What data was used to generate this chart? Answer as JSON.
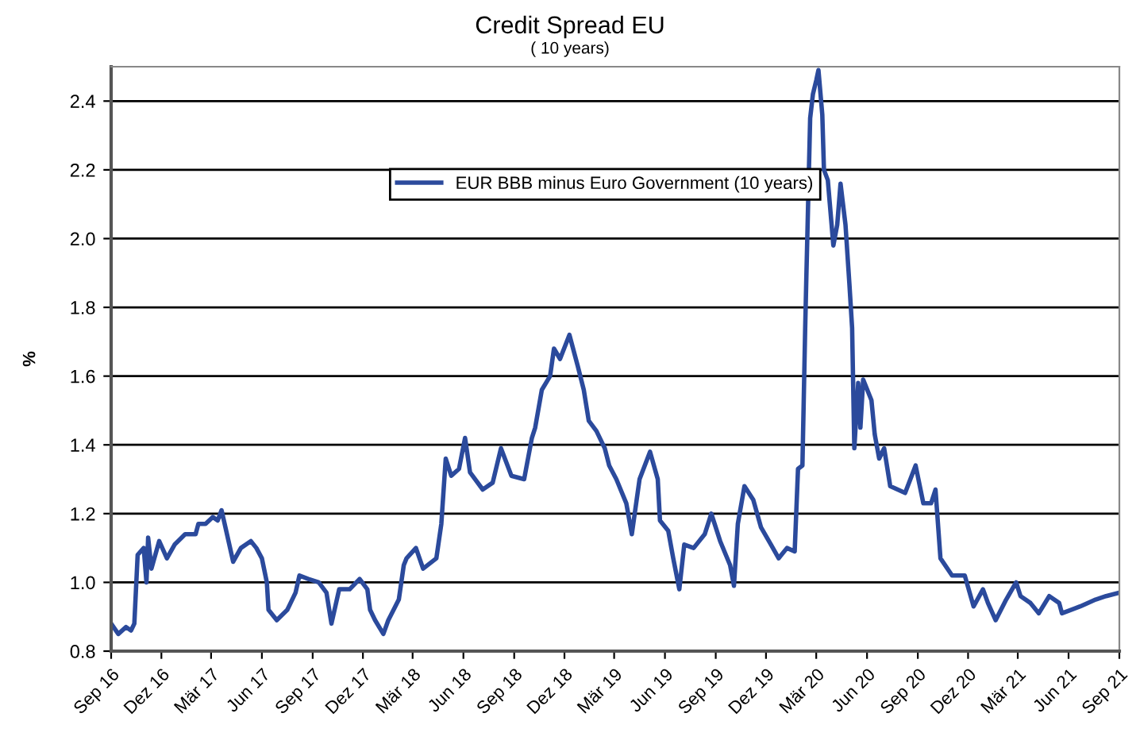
{
  "chart_data": {
    "type": "line",
    "title": "Credit Spread EU",
    "subtitle": "( 10 years)",
    "ylabel": "%",
    "x": [
      "2016-09-01",
      "2016-09-14",
      "2016-09-28",
      "2016-10-07",
      "2016-10-13",
      "2016-10-19",
      "2016-10-30",
      "2016-11-04",
      "2016-11-07",
      "2016-11-13",
      "2016-11-27",
      "2016-12-11",
      "2016-12-25",
      "2017-01-13",
      "2017-02-01",
      "2017-02-06",
      "2017-02-19",
      "2017-03-04",
      "2017-03-13",
      "2017-03-20",
      "2017-03-27",
      "2017-04-10",
      "2017-04-24",
      "2017-05-12",
      "2017-05-22",
      "2017-06-01",
      "2017-06-10",
      "2017-06-13",
      "2017-06-28",
      "2017-07-17",
      "2017-08-01",
      "2017-08-08",
      "2017-08-24",
      "2017-09-12",
      "2017-09-26",
      "2017-10-05",
      "2017-10-19",
      "2017-11-07",
      "2017-11-25",
      "2017-12-09",
      "2017-12-14",
      "2017-12-23",
      "2018-01-07",
      "2018-01-16",
      "2018-02-04",
      "2018-02-13",
      "2018-02-18",
      "2018-03-07",
      "2018-03-20",
      "2018-04-13",
      "2018-04-22",
      "2018-04-30",
      "2018-05-10",
      "2018-05-24",
      "2018-06-04",
      "2018-06-13",
      "2018-07-06",
      "2018-07-24",
      "2018-08-08",
      "2018-08-27",
      "2018-09-19",
      "2018-10-03",
      "2018-10-09",
      "2018-10-21",
      "2018-11-05",
      "2018-11-12",
      "2018-11-23",
      "2018-12-10",
      "2018-12-25",
      "2019-01-05",
      "2019-01-14",
      "2019-01-28",
      "2019-02-12",
      "2019-02-20",
      "2019-03-05",
      "2019-03-23",
      "2019-04-02",
      "2019-04-16",
      "2019-05-05",
      "2019-05-19",
      "2019-05-23",
      "2019-06-07",
      "2019-06-16",
      "2019-06-27",
      "2019-07-06",
      "2019-07-23",
      "2019-08-12",
      "2019-08-24",
      "2019-09-09",
      "2019-09-27",
      "2019-10-04",
      "2019-10-11",
      "2019-10-23",
      "2019-11-08",
      "2019-11-22",
      "2019-12-10",
      "2019-12-24",
      "2020-01-08",
      "2020-01-22",
      "2020-01-28",
      "2020-02-05",
      "2020-02-10",
      "2020-02-12",
      "2020-02-19",
      "2020-02-24",
      "2020-03-01",
      "2020-03-05",
      "2020-03-12",
      "2020-03-15",
      "2020-03-22",
      "2020-04-01",
      "2020-04-08",
      "2020-04-14",
      "2020-04-23",
      "2020-04-30",
      "2020-05-05",
      "2020-05-09",
      "2020-05-16",
      "2020-05-20",
      "2020-05-25",
      "2020-06-09",
      "2020-06-15",
      "2020-06-23",
      "2020-07-02",
      "2020-07-13",
      "2020-08-09",
      "2020-08-28",
      "2020-09-11",
      "2020-09-25",
      "2020-10-03",
      "2020-10-12",
      "2020-11-02",
      "2020-11-25",
      "2020-12-11",
      "2020-12-28",
      "2021-01-06",
      "2021-01-20",
      "2021-02-08",
      "2021-02-26",
      "2021-03-06",
      "2021-03-24",
      "2021-04-08",
      "2021-04-27",
      "2021-05-15",
      "2021-05-20",
      "2021-06-22",
      "2021-07-20",
      "2021-08-08",
      "2021-09-01"
    ],
    "series": [
      {
        "name": "EUR BBB minus Euro Government (10 years)",
        "color": "#2b4a9c",
        "values": [
          0.88,
          0.85,
          0.87,
          0.86,
          0.88,
          1.08,
          1.1,
          1.0,
          1.13,
          1.04,
          1.12,
          1.07,
          1.11,
          1.14,
          1.14,
          1.17,
          1.17,
          1.19,
          1.18,
          1.21,
          1.16,
          1.06,
          1.1,
          1.12,
          1.1,
          1.07,
          1.0,
          0.92,
          0.89,
          0.92,
          0.97,
          1.02,
          1.01,
          1.0,
          0.97,
          0.88,
          0.98,
          0.98,
          1.01,
          0.98,
          0.92,
          0.89,
          0.85,
          0.89,
          0.95,
          1.05,
          1.07,
          1.1,
          1.04,
          1.07,
          1.17,
          1.36,
          1.31,
          1.33,
          1.42,
          1.32,
          1.27,
          1.29,
          1.39,
          1.31,
          1.3,
          1.42,
          1.45,
          1.56,
          1.6,
          1.68,
          1.65,
          1.72,
          1.63,
          1.56,
          1.47,
          1.44,
          1.39,
          1.34,
          1.3,
          1.23,
          1.14,
          1.3,
          1.38,
          1.3,
          1.18,
          1.15,
          1.07,
          0.98,
          1.11,
          1.1,
          1.14,
          1.2,
          1.12,
          1.05,
          0.99,
          1.17,
          1.28,
          1.24,
          1.16,
          1.11,
          1.07,
          1.1,
          1.09,
          1.33,
          1.34,
          1.74,
          1.88,
          2.35,
          2.42,
          2.46,
          2.49,
          2.36,
          2.2,
          2.17,
          1.98,
          2.04,
          2.16,
          2.04,
          1.87,
          1.74,
          1.39,
          1.58,
          1.45,
          1.59,
          1.53,
          1.43,
          1.36,
          1.39,
          1.28,
          1.26,
          1.34,
          1.23,
          1.23,
          1.27,
          1.07,
          1.02,
          1.02,
          0.93,
          0.98,
          0.94,
          0.89,
          0.95,
          1.0,
          0.96,
          0.94,
          0.91,
          0.96,
          0.94,
          0.91,
          0.93,
          0.95,
          0.96,
          0.97
        ]
      }
    ],
    "xlim": [
      "2016-09-01",
      "2021-09-01"
    ],
    "xticks": [
      {
        "value": "2016-09-01",
        "label": "Sep 16"
      },
      {
        "value": "2016-12-01",
        "label": "Dez 16"
      },
      {
        "value": "2017-03-01",
        "label": "Mär 17"
      },
      {
        "value": "2017-06-01",
        "label": "Jun 17"
      },
      {
        "value": "2017-09-01",
        "label": "Sep 17"
      },
      {
        "value": "2017-12-01",
        "label": "Dez 17"
      },
      {
        "value": "2018-03-01",
        "label": "Mär 18"
      },
      {
        "value": "2018-06-01",
        "label": "Jun 18"
      },
      {
        "value": "2018-09-01",
        "label": "Sep 18"
      },
      {
        "value": "2018-12-01",
        "label": "Dez 18"
      },
      {
        "value": "2019-03-01",
        "label": "Mär 19"
      },
      {
        "value": "2019-06-01",
        "label": "Jun 19"
      },
      {
        "value": "2019-09-01",
        "label": "Sep 19"
      },
      {
        "value": "2019-12-01",
        "label": "Dez 19"
      },
      {
        "value": "2020-03-01",
        "label": "Mär 20"
      },
      {
        "value": "2020-06-01",
        "label": "Jun 20"
      },
      {
        "value": "2020-09-01",
        "label": "Sep 20"
      },
      {
        "value": "2020-12-01",
        "label": "Dez 20"
      },
      {
        "value": "2021-03-01",
        "label": "Mär 21"
      },
      {
        "value": "2021-06-01",
        "label": "Jun 21"
      },
      {
        "value": "2021-09-01",
        "label": "Sep 21"
      }
    ],
    "ylim": [
      0.8,
      2.5
    ],
    "yticks": [
      {
        "value": 0.8,
        "label": "0.8"
      },
      {
        "value": 1.0,
        "label": "1.0"
      },
      {
        "value": 1.2,
        "label": "1.2"
      },
      {
        "value": 1.4,
        "label": "1.4"
      },
      {
        "value": 1.6,
        "label": "1.6"
      },
      {
        "value": 1.8,
        "label": "1.8"
      },
      {
        "value": 2.0,
        "label": "2.0"
      },
      {
        "value": 2.2,
        "label": "2.2"
      },
      {
        "value": 2.4,
        "label": "2.4"
      }
    ],
    "grid": "y",
    "legend": "top",
    "marker": "none",
    "line_style": "solid"
  }
}
